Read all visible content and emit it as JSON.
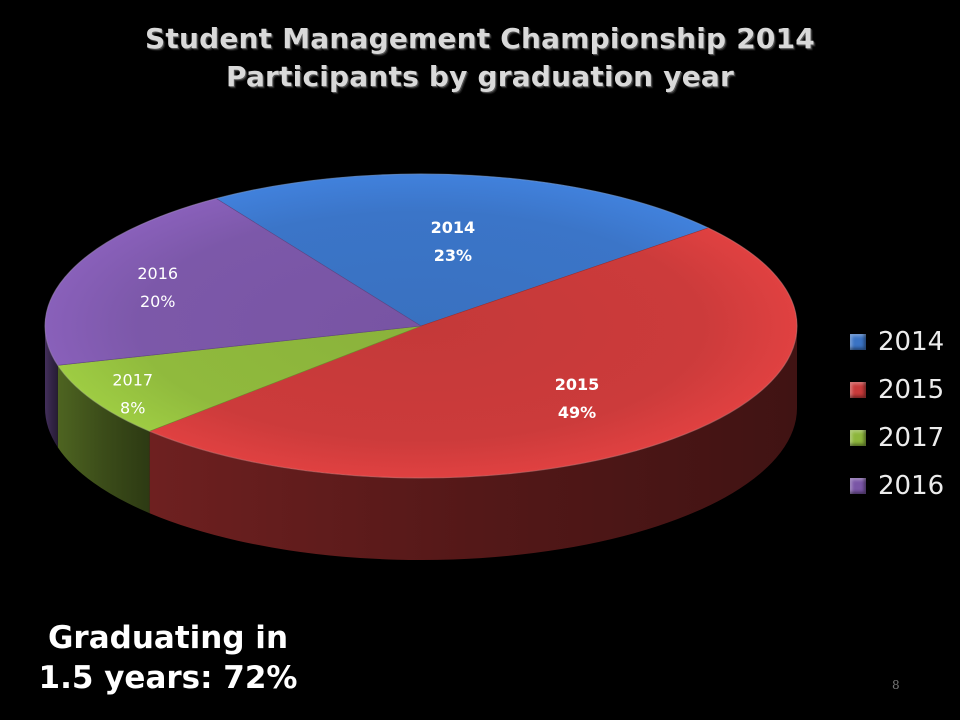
{
  "chart_data": {
    "type": "pie",
    "title": "Student Management Championship 2014",
    "subtitle": "Participants by graduation year",
    "slices": [
      {
        "label": "2014",
        "value": 23,
        "value_label": "23%",
        "color": "#3a73c4"
      },
      {
        "label": "2015",
        "value": 49,
        "value_label": "49%",
        "color": "#c83a3a"
      },
      {
        "label": "2017",
        "value": 8,
        "value_label": "8%",
        "color": "#8db63c"
      },
      {
        "label": "2016",
        "value": 20,
        "value_label": "20%",
        "color": "#7a56a6"
      }
    ],
    "legend": {
      "placement": "right",
      "entries": [
        "2014",
        "2015",
        "2017",
        "2016"
      ]
    },
    "style": "3d",
    "background": "#000000"
  },
  "callout": {
    "line1": "Graduating in",
    "line2": "1.5 years: 72%"
  },
  "page_number": "8"
}
